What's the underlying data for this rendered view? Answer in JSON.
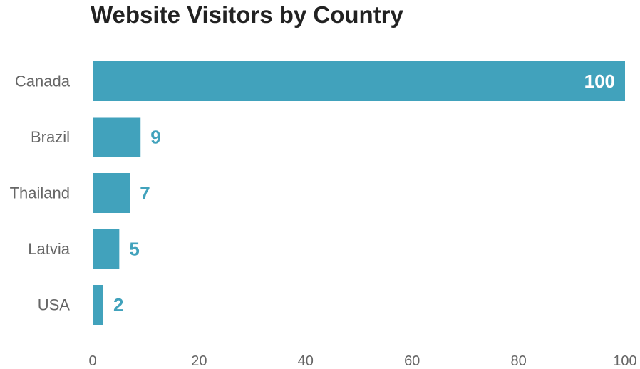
{
  "chart_data": {
    "type": "bar",
    "orientation": "horizontal",
    "title": "Website Visitors by Country",
    "xlabel": "",
    "ylabel": "",
    "categories": [
      "Canada",
      "Brazil",
      "Thailand",
      "Latvia",
      "USA"
    ],
    "values": [
      100,
      9,
      7,
      5,
      2
    ],
    "xlim": [
      0,
      100
    ],
    "xticks": [
      0,
      20,
      40,
      60,
      80,
      100
    ],
    "grid": false,
    "legend": "none",
    "bar_color": "#41a2bc",
    "label_color_outside": "#41a2bc",
    "label_color_inside": "#ffffff"
  }
}
